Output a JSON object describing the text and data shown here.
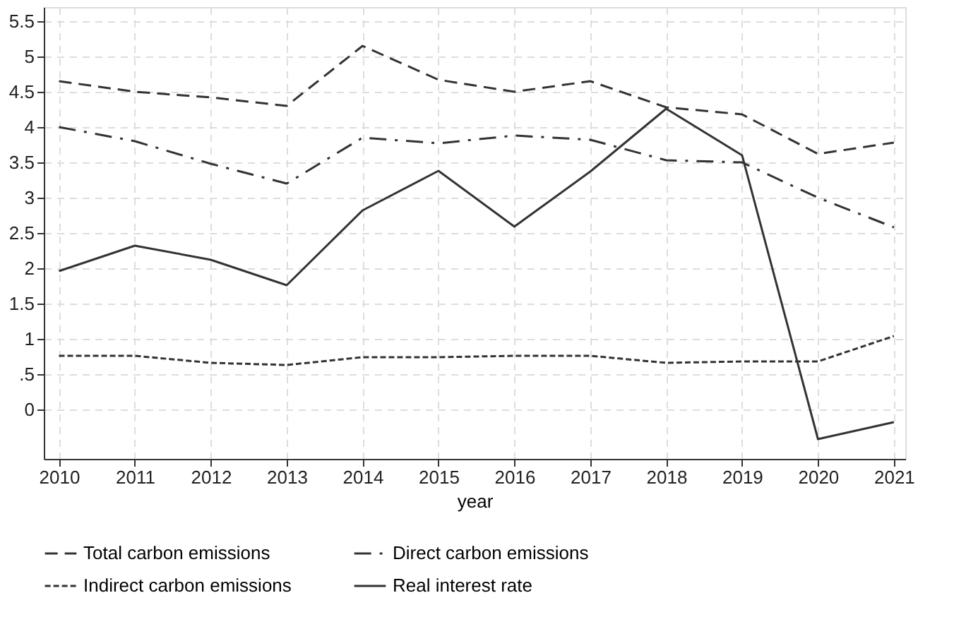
{
  "chart_data": {
    "type": "line",
    "xlabel": "year",
    "x": [
      2010,
      2011,
      2012,
      2013,
      2014,
      2015,
      2016,
      2017,
      2018,
      2019,
      2020,
      2021
    ],
    "xlim": [
      2009.8,
      2021.15
    ],
    "xticks": [
      2010,
      2011,
      2012,
      2013,
      2014,
      2015,
      2016,
      2017,
      2018,
      2019,
      2020,
      2021
    ],
    "ylim": [
      -0.7,
      5.7
    ],
    "yticks": [
      0,
      {
        "value": 0.5,
        "label": ".5"
      },
      1,
      1.5,
      2,
      2.5,
      3,
      3.5,
      4,
      4.5,
      5,
      5.5
    ],
    "grid": true,
    "legend": "bottom",
    "marker": "none",
    "series": [
      {
        "name": "Total carbon emissions",
        "color": "#333333",
        "line_style": "dashed",
        "values": [
          4.65,
          4.5,
          4.42,
          4.3,
          5.15,
          4.67,
          4.5,
          4.65,
          4.28,
          4.18,
          3.62,
          3.78
        ]
      },
      {
        "name": "Direct carbon emissions",
        "color": "#333333",
        "line_style": "dashdot",
        "values": [
          4.0,
          3.8,
          3.48,
          3.2,
          3.85,
          3.77,
          3.88,
          3.82,
          3.53,
          3.5,
          3.0,
          2.58
        ]
      },
      {
        "name": "Indirect carbon emissions",
        "color": "#333333",
        "line_style": "dotted",
        "values": [
          0.76,
          0.76,
          0.66,
          0.63,
          0.74,
          0.74,
          0.76,
          0.76,
          0.66,
          0.68,
          0.68,
          1.04
        ]
      },
      {
        "name": "Real interest rate",
        "color": "#333333",
        "line_style": "solid",
        "values": [
          1.96,
          2.32,
          2.12,
          1.76,
          2.82,
          3.38,
          2.59,
          3.37,
          4.26,
          3.6,
          -0.42,
          -0.18
        ]
      }
    ]
  }
}
